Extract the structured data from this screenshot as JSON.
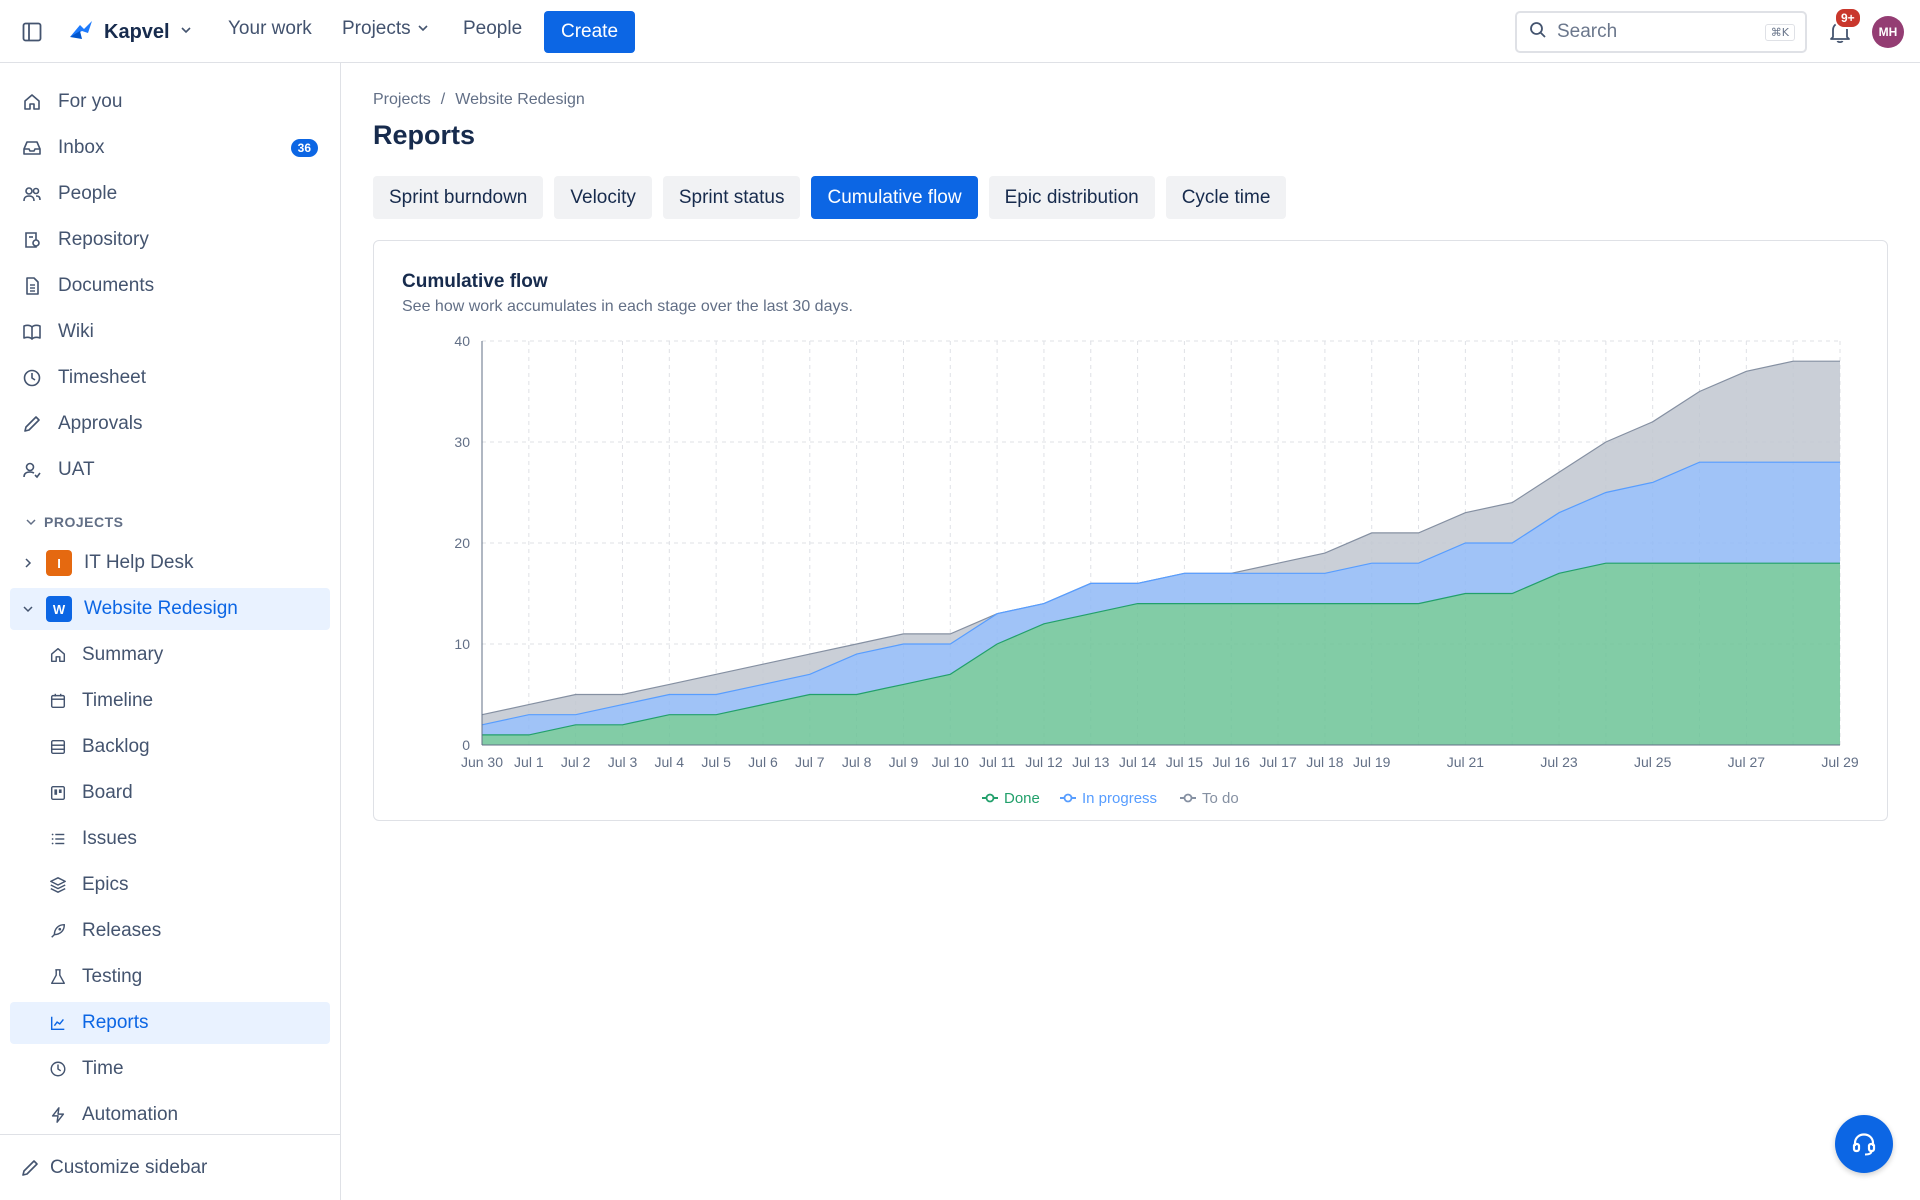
{
  "topbar": {
    "brand": "Kapvel",
    "nav": [
      "Your work",
      "Projects",
      "People"
    ],
    "create_label": "Create",
    "search_placeholder": "Search",
    "search_shortcut": "⌘K",
    "notifications_badge": "9+",
    "avatar_initials": "MH"
  },
  "sidebar": {
    "items": [
      {
        "label": "For you",
        "icon": "home-icon"
      },
      {
        "label": "Inbox",
        "icon": "inbox-icon",
        "badge": "36"
      },
      {
        "label": "People",
        "icon": "people-icon"
      },
      {
        "label": "Repository",
        "icon": "repository-icon"
      },
      {
        "label": "Documents",
        "icon": "document-icon"
      },
      {
        "label": "Wiki",
        "icon": "book-icon"
      },
      {
        "label": "Timesheet",
        "icon": "clock-icon"
      },
      {
        "label": "Approvals",
        "icon": "pencil-icon"
      },
      {
        "label": "UAT",
        "icon": "user-check-icon"
      }
    ],
    "projects_header": "PROJECTS",
    "projects": [
      {
        "label": "IT Help Desk",
        "letter": "I",
        "color": "#e56910"
      },
      {
        "label": "Website Redesign",
        "letter": "W",
        "color": "#0c66e4"
      }
    ],
    "sub_items": [
      {
        "label": "Summary",
        "icon": "home-icon"
      },
      {
        "label": "Timeline",
        "icon": "calendar-icon"
      },
      {
        "label": "Backlog",
        "icon": "backlog-icon"
      },
      {
        "label": "Board",
        "icon": "board-icon"
      },
      {
        "label": "Issues",
        "icon": "list-icon"
      },
      {
        "label": "Epics",
        "icon": "layers-icon"
      },
      {
        "label": "Releases",
        "icon": "rocket-icon"
      },
      {
        "label": "Testing",
        "icon": "flask-icon"
      },
      {
        "label": "Reports",
        "icon": "chart-icon"
      },
      {
        "label": "Time",
        "icon": "clock-icon"
      },
      {
        "label": "Automation",
        "icon": "lightning-icon"
      }
    ],
    "customize_label": "Customize sidebar"
  },
  "main": {
    "breadcrumb": [
      "Projects",
      "Website Redesign"
    ],
    "title": "Reports",
    "tabs": [
      "Sprint burndown",
      "Velocity",
      "Sprint status",
      "Cumulative flow",
      "Epic distribution",
      "Cycle time"
    ],
    "active_tab": "Cumulative flow",
    "card_title": "Cumulative flow",
    "card_subtitle": "See how work accumulates in each stage over the last 30 days."
  },
  "colors": {
    "accent": "#0c66e4",
    "done": "#6cc396",
    "done_line": "#22a06b",
    "in_progress": "#8fb8f6",
    "in_progress_line": "#579dff",
    "todo": "#c1c7d0",
    "todo_line": "#8590a2"
  },
  "chart_data": {
    "type": "area",
    "stacked": true,
    "x": [
      "Jun 30",
      "Jul 1",
      "Jul 2",
      "Jul 3",
      "Jul 4",
      "Jul 5",
      "Jul 6",
      "Jul 7",
      "Jul 8",
      "Jul 9",
      "Jul 10",
      "Jul 11",
      "Jul 12",
      "Jul 13",
      "Jul 14",
      "Jul 15",
      "Jul 16",
      "Jul 17",
      "Jul 18",
      "Jul 19",
      "Jul 20",
      "Jul 21",
      "Jul 22",
      "Jul 23",
      "Jul 24",
      "Jul 25",
      "Jul 26",
      "Jul 27",
      "Jul 28",
      "Jul 29"
    ],
    "x_tick_labels": [
      "Jun 30",
      "Jul 1",
      "Jul 2",
      "Jul 3",
      "Jul 4",
      "Jul 5",
      "Jul 6",
      "Jul 7",
      "Jul 8",
      "Jul 9",
      "Jul 10",
      "Jul 11",
      "Jul 12",
      "Jul 13",
      "Jul 14",
      "Jul 15",
      "Jul 16",
      "Jul 17",
      "Jul 18",
      "Jul 19",
      "Jul 21",
      "Jul 23",
      "Jul 25",
      "Jul 27",
      "Jul 29"
    ],
    "series": [
      {
        "name": "Done",
        "values": [
          1,
          1,
          2,
          2,
          3,
          3,
          4,
          5,
          5,
          6,
          7,
          10,
          12,
          13,
          14,
          14,
          14,
          14,
          14,
          14,
          14,
          15,
          15,
          17,
          18,
          18,
          18,
          18,
          18,
          18
        ]
      },
      {
        "name": "In progress",
        "values": [
          1,
          2,
          1,
          2,
          2,
          2,
          2,
          2,
          4,
          4,
          3,
          3,
          2,
          3,
          2,
          3,
          3,
          3,
          3,
          4,
          4,
          5,
          5,
          6,
          7,
          8,
          10,
          10,
          10,
          10
        ]
      },
      {
        "name": "To do",
        "values": [
          1,
          1,
          2,
          1,
          1,
          2,
          2,
          2,
          1,
          1,
          1,
          0,
          0,
          0,
          0,
          0,
          0,
          1,
          2,
          3,
          3,
          3,
          4,
          4,
          5,
          6,
          7,
          9,
          10,
          10
        ]
      }
    ],
    "yticks": [
      0,
      10,
      20,
      30,
      40
    ],
    "ylim": [
      0,
      40
    ],
    "grid": true,
    "legend": "bottom-center"
  }
}
